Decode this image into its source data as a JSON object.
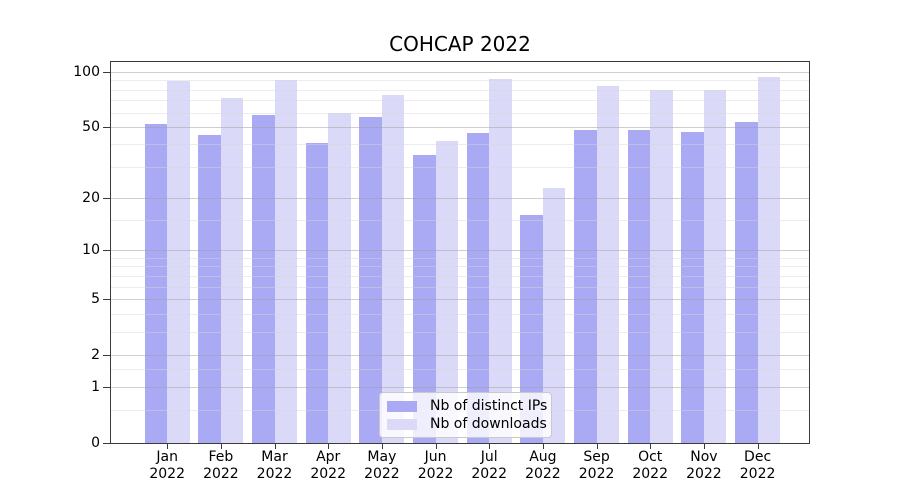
{
  "title": "COHCAP 2022",
  "chart_data": {
    "type": "bar",
    "title": "COHCAP 2022",
    "categories": [
      "Jan 2022",
      "Feb 2022",
      "Mar 2022",
      "Apr 2022",
      "May 2022",
      "Jun 2022",
      "Jul 2022",
      "Aug 2022",
      "Sep 2022",
      "Oct 2022",
      "Nov 2022",
      "Dec 2022"
    ],
    "x_tick_month_lines": [
      "Jan",
      "Feb",
      "Mar",
      "Apr",
      "May",
      "Jun",
      "Jul",
      "Aug",
      "Sep",
      "Oct",
      "Nov",
      "Dec"
    ],
    "x_tick_year_line": "2022",
    "series": [
      {
        "name": "Nb of distinct IPs",
        "color": "#a9a9f4",
        "values": [
          52,
          45,
          58,
          41,
          57,
          35,
          46,
          16,
          48,
          48,
          47,
          53
        ]
      },
      {
        "name": "Nb of downloads",
        "color": "#dadaf8",
        "values": [
          89,
          72,
          90,
          60,
          75,
          42,
          92,
          23,
          84,
          80,
          80,
          94
        ]
      }
    ],
    "y_scale": "log10(1+y)",
    "y_major_ticks": [
      0,
      1,
      2,
      5,
      10,
      20,
      50,
      100
    ],
    "y_minor_gridlines": [
      0.5,
      1.5,
      3,
      4,
      6,
      7,
      8,
      9,
      15,
      30,
      40,
      60,
      70,
      80,
      90
    ],
    "ylim": [
      0,
      116
    ],
    "xlabel": "",
    "ylabel": "",
    "grid": "horizontal",
    "legend_position": "lower center"
  },
  "colors": {
    "background": "#ffffff",
    "plot_border": "#3a3a3a",
    "grid_major": "#d2d2d2",
    "grid_minor": "#e9e9e9",
    "bar_distinct_ips": "#a9a9f4",
    "bar_downloads": "#dadaf8",
    "legend_border": "#c9c9c9",
    "text": "#000000"
  }
}
